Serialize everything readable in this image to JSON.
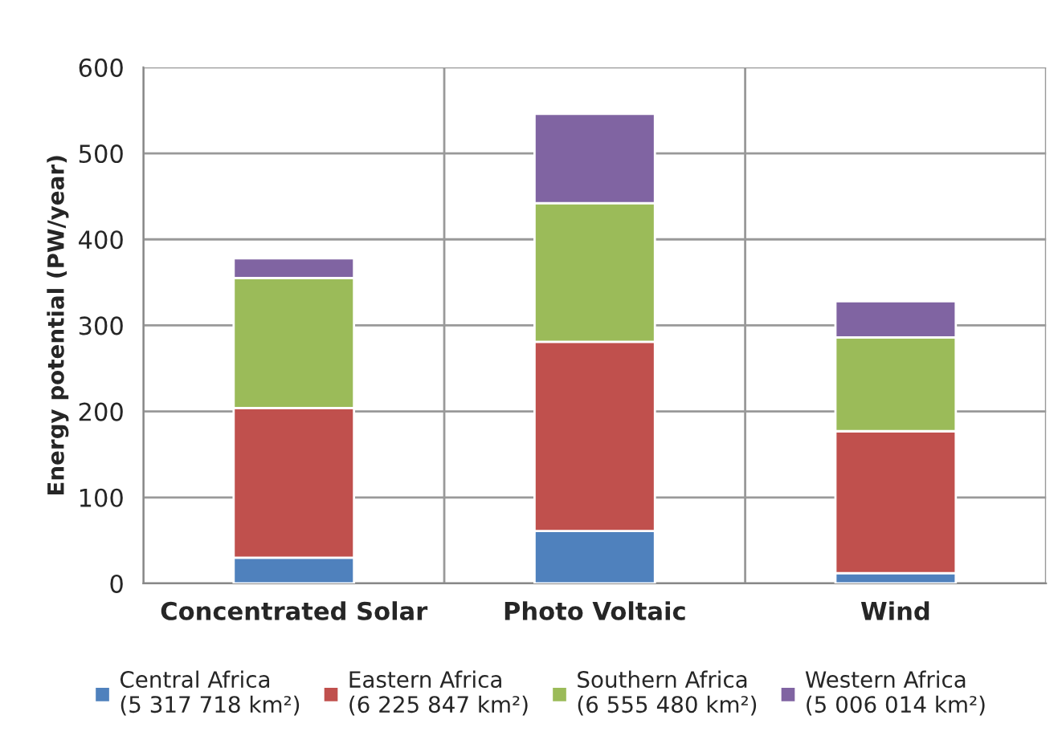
{
  "chart_data": {
    "type": "bar",
    "stacked": true,
    "ylabel": "Energy potential (PW/year)",
    "categories": [
      "Concentrated Solar",
      "Photo Voltaic",
      "Wind"
    ],
    "series": [
      {
        "name": "Central Africa\n(5 317 718 km²)",
        "color": "#4f81bd",
        "values": [
          30,
          61,
          12
        ]
      },
      {
        "name": "Eastern Africa\n(6 225 847 km²)",
        "color": "#c0504d",
        "values": [
          174,
          220,
          165
        ]
      },
      {
        "name": "Southern Africa\n(6 555 480 km²)",
        "color": "#9bbb59",
        "values": [
          151,
          161,
          109
        ]
      },
      {
        "name": "Western Africa\n(5 006 014 km²)",
        "color": "#8064a2",
        "values": [
          23,
          104,
          42
        ]
      }
    ],
    "ylim": [
      0,
      600
    ],
    "yticks": [
      0,
      100,
      200,
      300,
      400,
      500,
      600
    ],
    "grid": true,
    "legend": "bottom"
  }
}
